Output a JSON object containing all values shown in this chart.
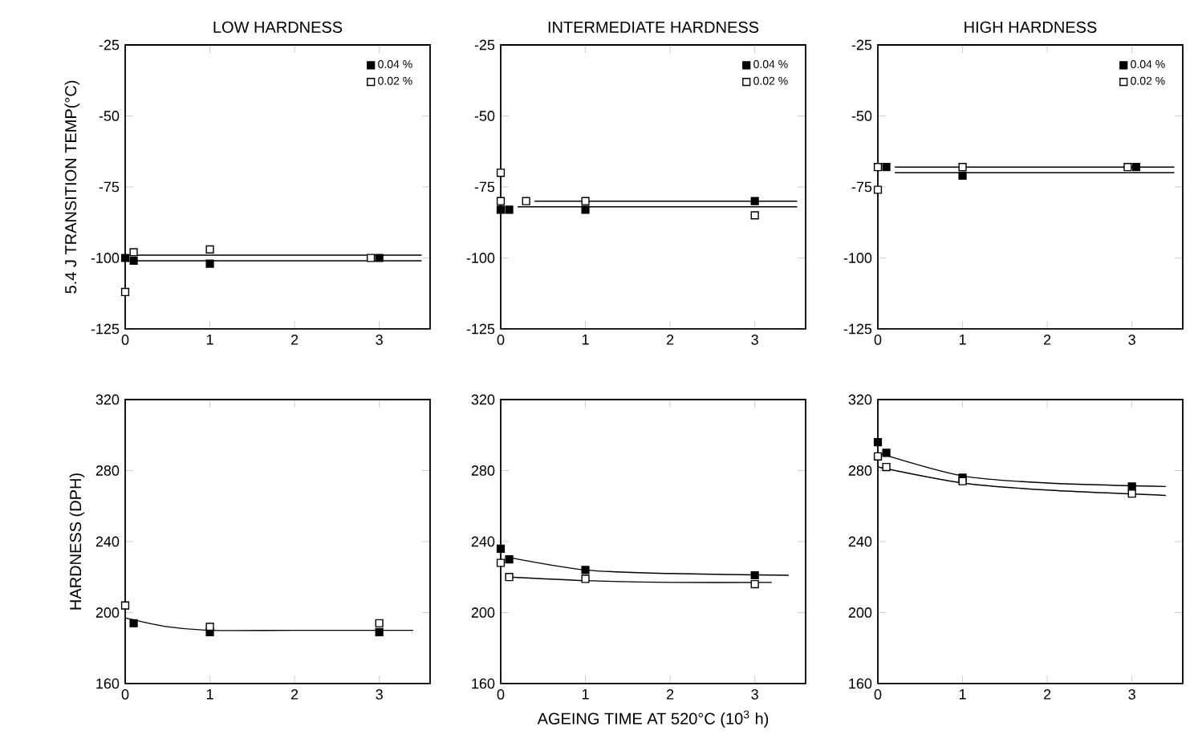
{
  "chart_data": [
    {
      "type": "scatter",
      "title": "LOW HARDNESS",
      "ylabel": "5.4 J TRANSITION TEMP(°C)",
      "xlim": [
        0,
        3.6
      ],
      "ylim": [
        -125,
        -25
      ],
      "xticks": [
        0,
        1,
        2,
        3
      ],
      "yticks": [
        -125,
        -100,
        -75,
        -50,
        -25
      ],
      "legend": "top right",
      "marker": "square",
      "series": [
        {
          "name": "0.04 %",
          "color": "#000000",
          "x": [
            0,
            0.1,
            1,
            3
          ],
          "values": [
            -100,
            -101,
            -102,
            -100
          ]
        },
        {
          "name": "0.02 %",
          "color": "#ffffff",
          "x": [
            0,
            0.1,
            1,
            2.9
          ],
          "values": [
            -112,
            -98,
            -97,
            -100
          ]
        },
        {
          "type": "line",
          "marker": "none",
          "color": "#000000",
          "x": [
            0,
            3.5
          ],
          "values": [
            -101,
            -101
          ]
        },
        {
          "type": "line",
          "marker": "none",
          "color": "#000000",
          "x": [
            0,
            3.5
          ],
          "values": [
            -99,
            -99
          ]
        }
      ]
    },
    {
      "type": "scatter",
      "title": "INTERMEDIATE HARDNESS",
      "xlim": [
        0,
        3.6
      ],
      "ylim": [
        -125,
        -25
      ],
      "xticks": [
        0,
        1,
        2,
        3
      ],
      "yticks": [
        -125,
        -100,
        -75,
        -50,
        -25
      ],
      "legend": "top right",
      "marker": "square",
      "series": [
        {
          "name": "0.04 %",
          "color": "#000000",
          "x": [
            0,
            0.1,
            1,
            3
          ],
          "values": [
            -83,
            -83,
            -83,
            -80
          ]
        },
        {
          "name": "0.02 %",
          "color": "#ffffff",
          "x": [
            0,
            0,
            0.3,
            1,
            3
          ],
          "values": [
            -70,
            -80,
            -80,
            -80,
            -85
          ]
        },
        {
          "type": "line",
          "marker": "none",
          "color": "#000000",
          "x": [
            0.2,
            3.5
          ],
          "values": [
            -82,
            -82
          ]
        },
        {
          "type": "line",
          "marker": "none",
          "color": "#000000",
          "x": [
            0.4,
            3.5
          ],
          "values": [
            -80,
            -80
          ]
        }
      ]
    },
    {
      "type": "scatter",
      "title": "HIGH HARDNESS",
      "xlim": [
        0,
        3.6
      ],
      "ylim": [
        -125,
        -25
      ],
      "xticks": [
        0,
        1,
        2,
        3
      ],
      "yticks": [
        -125,
        -100,
        -75,
        -50,
        -25
      ],
      "legend": "top right",
      "marker": "square",
      "series": [
        {
          "name": "0.04 %",
          "color": "#000000",
          "x": [
            0.1,
            1,
            3.05
          ],
          "values": [
            -68,
            -71,
            -68
          ]
        },
        {
          "name": "0.02 %",
          "color": "#ffffff",
          "x": [
            0,
            0,
            1,
            2.95
          ],
          "values": [
            -68,
            -76,
            -68,
            -68
          ]
        },
        {
          "type": "line",
          "marker": "none",
          "color": "#000000",
          "x": [
            0.2,
            3.5
          ],
          "values": [
            -70,
            -70
          ]
        },
        {
          "type": "line",
          "marker": "none",
          "color": "#000000",
          "x": [
            0.2,
            3.5
          ],
          "values": [
            -68,
            -68
          ]
        }
      ]
    },
    {
      "type": "scatter",
      "ylabel": "HARDNESS (DPH)",
      "xlim": [
        0,
        3.6
      ],
      "ylim": [
        160,
        320
      ],
      "xticks": [
        0,
        1,
        2,
        3
      ],
      "yticks": [
        160,
        200,
        240,
        280,
        320
      ],
      "marker": "square",
      "series": [
        {
          "color": "#000000",
          "x": [
            0.1,
            1,
            3
          ],
          "values": [
            194,
            189,
            189
          ]
        },
        {
          "color": "#ffffff",
          "x": [
            0,
            1,
            3
          ],
          "values": [
            204,
            192,
            194
          ]
        },
        {
          "type": "line",
          "marker": "none",
          "color": "#000000",
          "x": [
            0,
            0.5,
            1,
            2,
            3.4
          ],
          "values": [
            197,
            192,
            190,
            190,
            190
          ]
        }
      ]
    },
    {
      "type": "scatter",
      "xlabel": "AGEING TIME AT 520°C (10$^{3}$ h)",
      "xlim": [
        0,
        3.6
      ],
      "ylim": [
        160,
        320
      ],
      "xticks": [
        0,
        1,
        2,
        3
      ],
      "yticks": [
        160,
        200,
        240,
        280,
        320
      ],
      "marker": "square",
      "series": [
        {
          "color": "#000000",
          "x": [
            0,
            0.1,
            1,
            3
          ],
          "values": [
            236,
            230,
            224,
            221
          ]
        },
        {
          "color": "#ffffff",
          "x": [
            0,
            0.1,
            1,
            3
          ],
          "values": [
            228,
            220,
            219,
            216
          ]
        },
        {
          "type": "line",
          "marker": "none",
          "color": "#000000",
          "x": [
            0.1,
            1,
            2,
            3.4
          ],
          "values": [
            231,
            224,
            222,
            221
          ]
        },
        {
          "type": "line",
          "marker": "none",
          "color": "#000000",
          "x": [
            0.1,
            1,
            2,
            3.2
          ],
          "values": [
            220,
            218,
            217,
            217
          ]
        }
      ]
    },
    {
      "type": "scatter",
      "xlim": [
        0,
        3.6
      ],
      "ylim": [
        160,
        320
      ],
      "xticks": [
        0,
        1,
        2,
        3
      ],
      "yticks": [
        160,
        200,
        240,
        280,
        320
      ],
      "marker": "square",
      "series": [
        {
          "color": "#000000",
          "x": [
            0,
            0.1,
            1,
            3
          ],
          "values": [
            296,
            290,
            276,
            271
          ]
        },
        {
          "color": "#ffffff",
          "x": [
            0,
            0.1,
            1,
            3
          ],
          "values": [
            288,
            282,
            274,
            267
          ]
        },
        {
          "type": "line",
          "marker": "none",
          "color": "#000000",
          "x": [
            0,
            1,
            2,
            3.4
          ],
          "values": [
            290,
            277,
            273,
            271
          ]
        },
        {
          "type": "line",
          "marker": "none",
          "color": "#000000",
          "x": [
            0,
            1,
            2,
            3.4
          ],
          "values": [
            282,
            273,
            269,
            266
          ]
        }
      ]
    }
  ]
}
